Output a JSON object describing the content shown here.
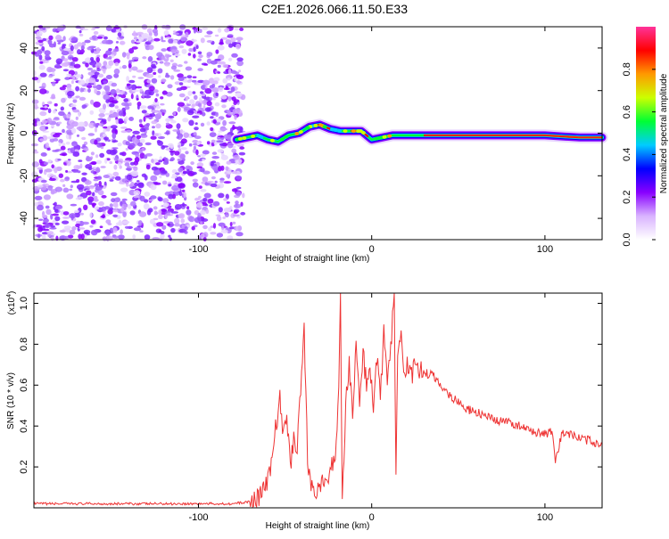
{
  "title": "C2E1.2026.066.11.50.E33",
  "chart_data": [
    {
      "type": "heatmap",
      "xlabel": "Height of straight line (km)",
      "ylabel": "Frequency (Hz)",
      "xlim": [
        -195,
        133
      ],
      "ylim": [
        -50,
        50
      ],
      "xticks": [
        -100,
        0,
        100
      ],
      "xtick_labels": [
        "-100",
        "0",
        "100"
      ],
      "yticks": [
        -40,
        -20,
        0,
        20,
        40
      ],
      "ytick_labels": [
        "-40",
        "-20",
        "0",
        "20",
        "40"
      ],
      "colorbar": {
        "label": "Normalized spectral amplitude",
        "range": [
          0,
          1
        ],
        "ticks": [
          0.0,
          0.2,
          0.4,
          0.6,
          0.8
        ],
        "tick_labels": [
          "0.0",
          "0.2",
          "0.4",
          "0.6",
          "0.8"
        ],
        "colormap": [
          "#ffffff",
          "#d9b3ff",
          "#8800ff",
          "#0000ff",
          "#00ccff",
          "#00ff33",
          "#ccff00",
          "#ff9900",
          "#ff0000",
          "#ff3399"
        ]
      },
      "noise_region_x": [
        -195,
        -73
      ],
      "ridge": {
        "x": [
          -78,
          -72,
          -66,
          -60,
          -54,
          -48,
          -42,
          -36,
          -30,
          -24,
          -18,
          -12,
          -6,
          0,
          6,
          12,
          20,
          40,
          60,
          80,
          100,
          120,
          133
        ],
        "y": [
          -3,
          -2,
          -1,
          -3,
          -4,
          -1,
          0,
          3,
          4,
          2,
          1,
          1,
          1,
          -3,
          -2,
          -1,
          -1,
          -1,
          -1,
          -1,
          -1,
          -2,
          -2
        ]
      }
    },
    {
      "type": "line",
      "xlabel": "Height of straight line (km)",
      "ylabel": "SNR (10 * v/v)",
      "y_multiplier": "(x10",
      "y_multiplier_exp": "4",
      "xlim": [
        -195,
        133
      ],
      "ylim": [
        0,
        1.05
      ],
      "xticks": [
        -100,
        0,
        100
      ],
      "xtick_labels": [
        "-100",
        "0",
        "100"
      ],
      "yticks": [
        0.2,
        0.4,
        0.6,
        0.8,
        1.0
      ],
      "ytick_labels": [
        "0.2",
        "0.4",
        "0.6",
        "0.8",
        "1.0"
      ],
      "line_color": "#ee3333",
      "series": [
        {
          "x": [
            -195,
            -160,
            -120,
            -80,
            -70,
            -66,
            -62,
            -59,
            -57,
            -55,
            -53,
            -51,
            -49,
            -47,
            -45,
            -43,
            -41,
            -39,
            -37,
            -35,
            -33,
            -31,
            -29,
            -27,
            -25,
            -23,
            -21,
            -19,
            -18,
            -17,
            -15,
            -13,
            -11,
            -9,
            -7,
            -5,
            -3,
            -1,
            1,
            3,
            5,
            7,
            9,
            11,
            13,
            14,
            15,
            17,
            19,
            21,
            23,
            25,
            27,
            30,
            35,
            40,
            45,
            50,
            55,
            60,
            65,
            70,
            75,
            80,
            85,
            90,
            95,
            100,
            104,
            106,
            110,
            115,
            120,
            125,
            133
          ],
          "y": [
            0.02,
            0.02,
            0.02,
            0.02,
            0.03,
            0.05,
            0.09,
            0.16,
            0.28,
            0.42,
            0.53,
            0.35,
            0.46,
            0.2,
            0.34,
            0.3,
            0.6,
            0.88,
            0.22,
            0.12,
            0.08,
            0.1,
            0.12,
            0.1,
            0.15,
            0.2,
            0.28,
            0.55,
            1.05,
            0.03,
            0.5,
            0.72,
            0.44,
            0.8,
            0.52,
            0.76,
            0.6,
            0.67,
            0.5,
            0.73,
            0.55,
            0.85,
            0.6,
            0.78,
            1.05,
            0.2,
            0.72,
            0.82,
            0.66,
            0.7,
            0.64,
            0.7,
            0.68,
            0.66,
            0.65,
            0.6,
            0.55,
            0.52,
            0.48,
            0.47,
            0.45,
            0.43,
            0.42,
            0.42,
            0.4,
            0.38,
            0.37,
            0.36,
            0.37,
            0.22,
            0.37,
            0.36,
            0.34,
            0.33,
            0.31
          ]
        }
      ]
    }
  ]
}
